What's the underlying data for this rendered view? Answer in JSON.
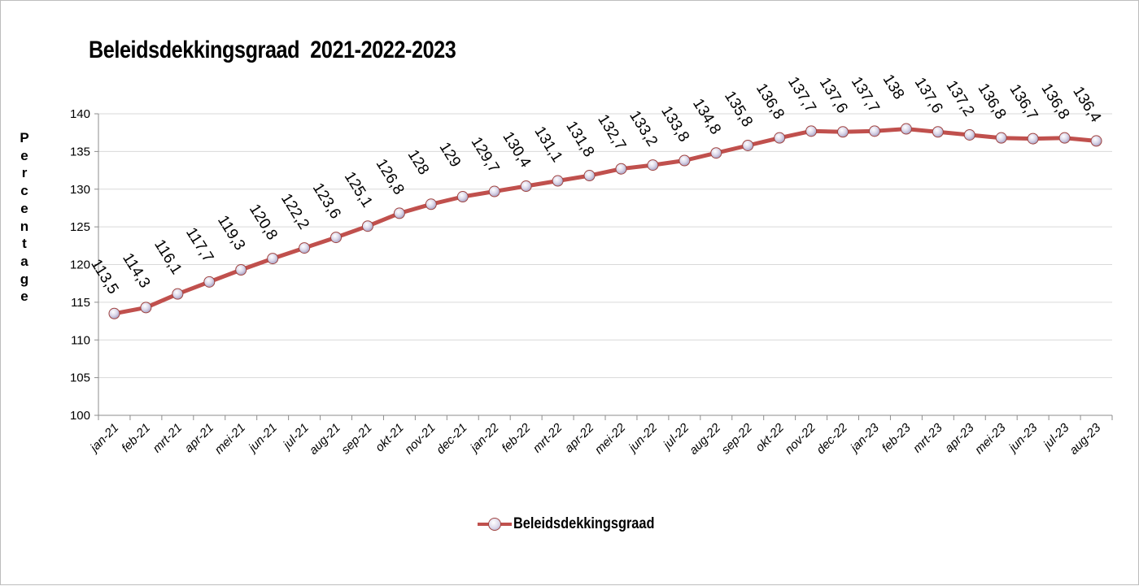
{
  "chart_data": {
    "type": "line",
    "title": "Beleidsdekkingsgraad  2021-2022-2023",
    "ylabel": "Percentage",
    "xlabel": "",
    "ylim": [
      100,
      140
    ],
    "yticks": [
      "100",
      "105",
      "110",
      "115",
      "120",
      "125",
      "130",
      "135",
      "140"
    ],
    "categories": [
      "jan-21",
      "feb-21",
      "mrt-21",
      "apr-21",
      "mei-21",
      "jun-21",
      "jul-21",
      "aug-21",
      "sep-21",
      "okt-21",
      "nov-21",
      "dec-21",
      "jan-22",
      "feb-22",
      "mrt-22",
      "apr-22",
      "mei-22",
      "jun-22",
      "jul-22",
      "aug-22",
      "sep-22",
      "okt-22",
      "nov-22",
      "dec-22",
      "jan-23",
      "feb-23",
      "mrt-23",
      "apr-23",
      "mei-23",
      "jun-23",
      "jul-23",
      "aug-23"
    ],
    "series": [
      {
        "name": "Beleidsdekkingsgraad",
        "values": [
          113.5,
          114.3,
          116.1,
          117.7,
          119.3,
          120.8,
          122.2,
          123.6,
          125.1,
          126.8,
          128,
          129,
          129.7,
          130.4,
          131.1,
          131.8,
          132.7,
          133.2,
          133.8,
          134.8,
          135.8,
          136.8,
          137.7,
          137.6,
          137.7,
          138,
          137.6,
          137.2,
          136.8,
          136.7,
          136.8,
          136.4
        ],
        "labels": [
          "113,5",
          "114,3",
          "116,1",
          "117,7",
          "119,3",
          "120,8",
          "122,2",
          "123,6",
          "125,1",
          "126,8",
          "128",
          "129",
          "129,7",
          "130,4",
          "131,1",
          "131,8",
          "132,7",
          "133,2",
          "133,8",
          "134,8",
          "135,8",
          "136,8",
          "137,7",
          "137,6",
          "137,7",
          "138",
          "137,6",
          "137,2",
          "136,8",
          "136,7",
          "136,8",
          "136,4"
        ],
        "color": "#c0504d"
      }
    ],
    "grid": true,
    "legend": "bottom"
  }
}
